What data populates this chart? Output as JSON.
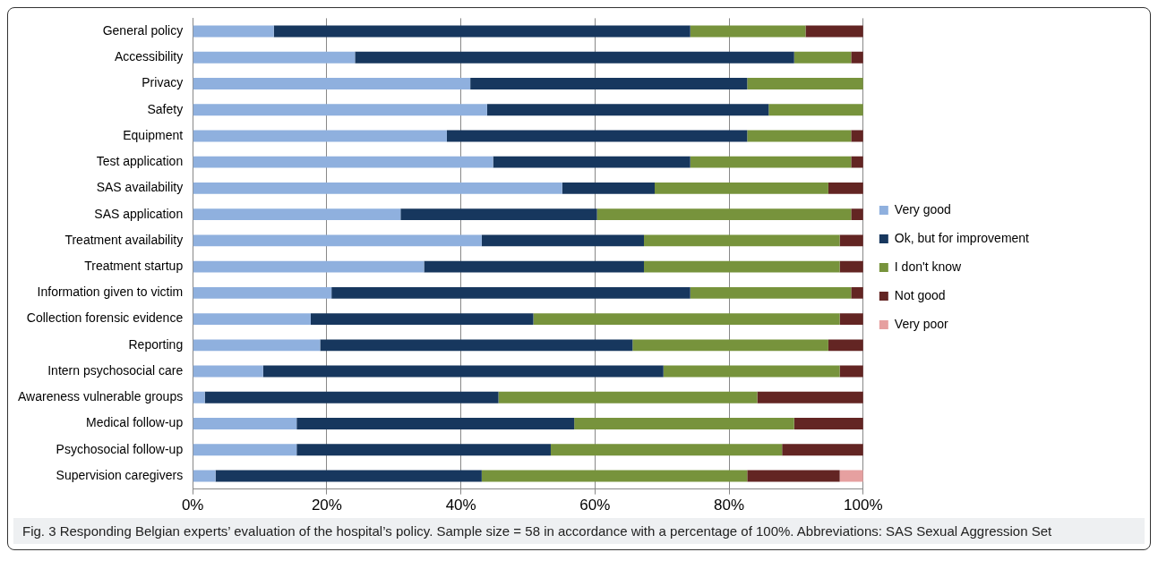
{
  "chart_data": {
    "type": "bar",
    "orientation": "horizontal",
    "stacked": true,
    "grid": "x",
    "legend": "right",
    "categories": [
      "General policy",
      "Accessibility",
      "Privacy",
      "Safety",
      "Equipment",
      "Test application",
      "SAS availability",
      "SAS application",
      "Treatment availability",
      "Treatment startup",
      "Information given to victim",
      "Collection forensic evidence",
      "Reporting",
      "Intern psychosocial care",
      "Awareness vulnerable groups",
      "Medical follow-up",
      "Psychosocial follow-up",
      "Supervision caregivers"
    ],
    "series": [
      {
        "name": "Very good",
        "color": "#8fb0de",
        "values": [
          12.1,
          24.2,
          41.4,
          43.9,
          37.9,
          44.8,
          55.1,
          31.0,
          43.1,
          34.5,
          20.7,
          17.6,
          19.0,
          10.5,
          1.8,
          15.5,
          15.5,
          3.4
        ]
      },
      {
        "name": "Ok, but for improvement",
        "color": "#17375e",
        "values": [
          62.1,
          65.5,
          41.3,
          42.0,
          44.8,
          29.4,
          13.8,
          29.3,
          24.2,
          32.8,
          53.5,
          33.2,
          46.6,
          59.7,
          43.8,
          41.4,
          37.9,
          39.7
        ]
      },
      {
        "name": "I don't know",
        "color": "#77933c",
        "values": [
          17.2,
          8.5,
          17.3,
          14.1,
          15.5,
          24.0,
          25.9,
          37.9,
          29.2,
          29.2,
          24.0,
          45.7,
          29.2,
          26.3,
          38.6,
          32.8,
          34.5,
          39.6
        ]
      },
      {
        "name": "Not good",
        "color": "#632523",
        "values": [
          8.6,
          1.8,
          null,
          null,
          1.8,
          1.8,
          5.2,
          1.8,
          3.5,
          3.5,
          1.8,
          3.5,
          5.2,
          3.5,
          15.8,
          10.3,
          12.1,
          13.8
        ]
      },
      {
        "name": "Very poor",
        "color": "#e6a0a0",
        "values": [
          null,
          null,
          null,
          null,
          null,
          null,
          null,
          null,
          null,
          null,
          null,
          null,
          null,
          null,
          null,
          null,
          null,
          3.5
        ]
      }
    ],
    "xlim": [
      0,
      100
    ],
    "xticks": [
      {
        "value": 0,
        "label": "0%"
      },
      {
        "value": 20,
        "label": "20%"
      },
      {
        "value": 40,
        "label": "40%"
      },
      {
        "value": 60,
        "label": "60%"
      },
      {
        "value": 80,
        "label": "80%"
      },
      {
        "value": 100,
        "label": "100%"
      }
    ],
    "annotations": [
      "Fig. 3 Responding Belgian experts’ evaluation of the hospital’s policy. Sample size = 58 in accordance with a percentage of 100%. Abbreviations: SAS Sexual Aggression Set"
    ]
  }
}
